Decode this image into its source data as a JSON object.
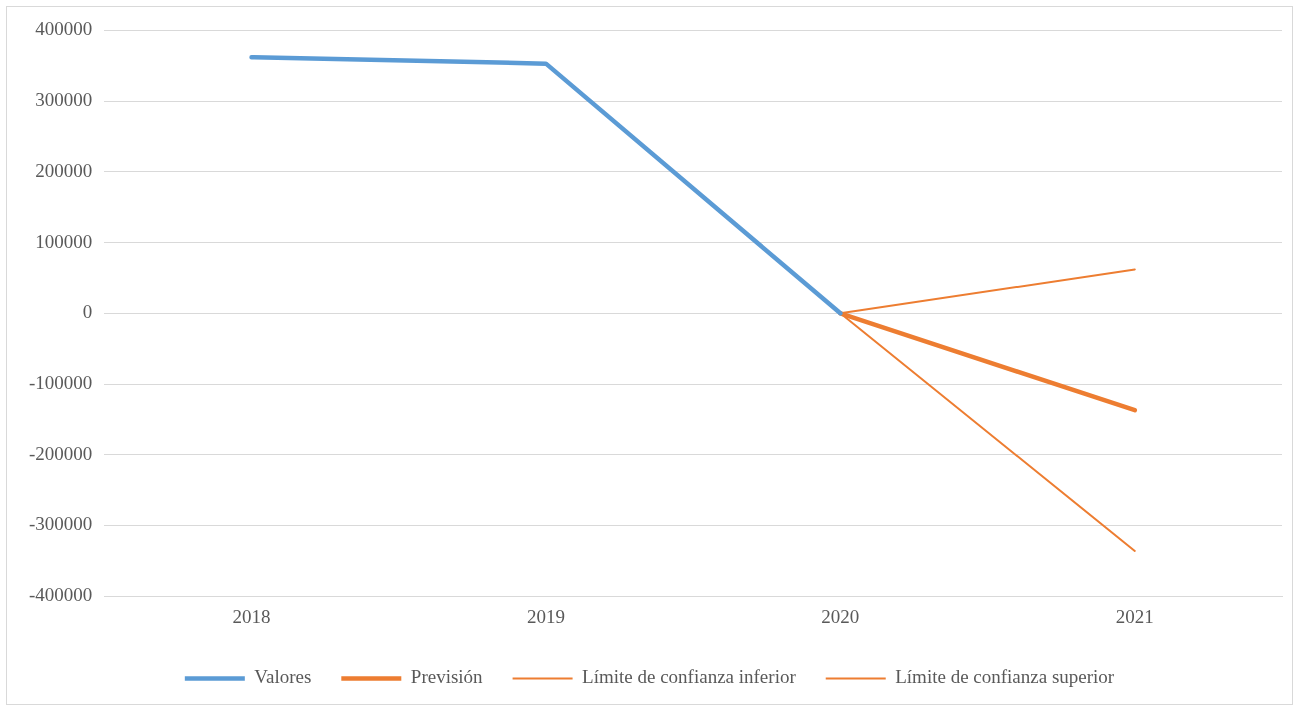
{
  "chart_data": {
    "type": "line",
    "categories": [
      "2018",
      "2019",
      "2020",
      "2021"
    ],
    "series": [
      {
        "name": "Valores",
        "color": "#5b9bd5",
        "values": [
          362000,
          353000,
          0,
          null
        ]
      },
      {
        "name": "Previsión",
        "color": "#ed7d31",
        "values": [
          null,
          null,
          0,
          -137000
        ]
      },
      {
        "name": "Límite de confianza inferior",
        "color": "#ed7d31",
        "values": [
          null,
          null,
          0,
          -336000
        ]
      },
      {
        "name": "Límite de confianza superior",
        "color": "#ed7d31",
        "values": [
          null,
          null,
          0,
          62000
        ]
      }
    ],
    "ylim": [
      -400000,
      400000
    ],
    "yticks": [
      -400000,
      -300000,
      -200000,
      -100000,
      0,
      100000,
      200000,
      300000,
      400000
    ],
    "grid": "y",
    "legend": "bottom",
    "marker": "none",
    "line_style": "solid"
  }
}
